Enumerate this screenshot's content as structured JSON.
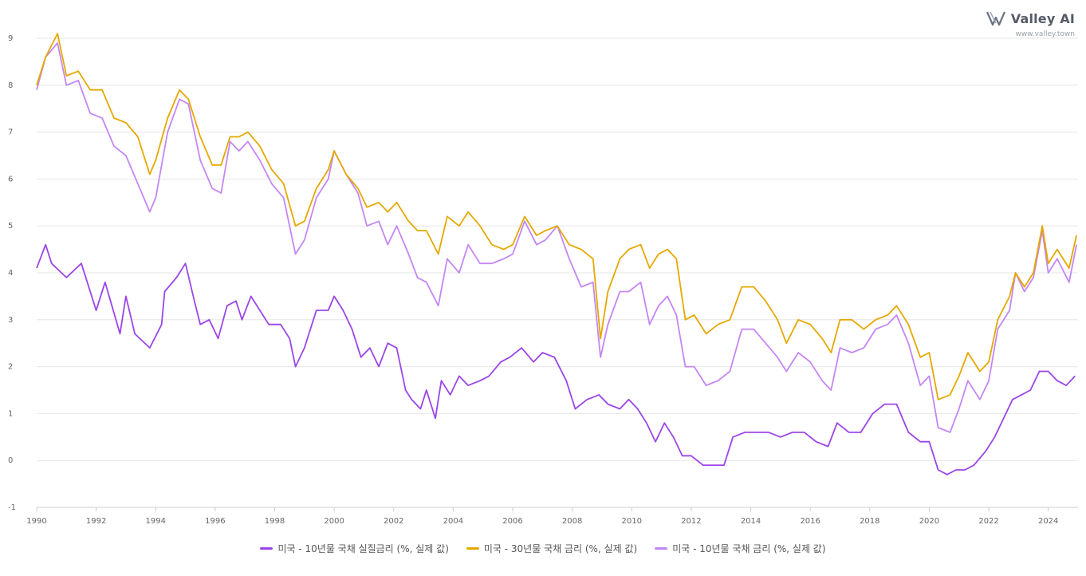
{
  "brand": {
    "name": "Valley AI",
    "url": "www.valley.town"
  },
  "chart_data": {
    "type": "line",
    "title": "",
    "xlabel": "",
    "ylabel": "",
    "xlim": [
      1990,
      2025
    ],
    "ylim": [
      -1,
      9
    ],
    "y_ticks": [
      -1,
      0,
      1,
      2,
      3,
      4,
      5,
      6,
      7,
      8,
      9
    ],
    "x_ticks": [
      1990,
      1992,
      1994,
      1996,
      1998,
      2000,
      2002,
      2004,
      2006,
      2008,
      2010,
      2012,
      2014,
      2016,
      2018,
      2020,
      2022,
      2024
    ],
    "grid": "horizontal",
    "legend_position": "bottom",
    "series": [
      {
        "name": "미국 - 10년물 국채 실질금리 (%, 실제 값)",
        "color": "#9b45e8",
        "points": [
          [
            1990.0,
            4.1
          ],
          [
            1990.3,
            4.6
          ],
          [
            1990.5,
            4.2
          ],
          [
            1991.0,
            3.9
          ],
          [
            1991.5,
            4.2
          ],
          [
            1992.0,
            3.2
          ],
          [
            1992.3,
            3.8
          ],
          [
            1992.8,
            2.7
          ],
          [
            1993.0,
            3.5
          ],
          [
            1993.3,
            2.7
          ],
          [
            1993.8,
            2.4
          ],
          [
            1994.2,
            2.9
          ],
          [
            1994.3,
            3.6
          ],
          [
            1994.7,
            3.9
          ],
          [
            1995.0,
            4.2
          ],
          [
            1995.3,
            3.4
          ],
          [
            1995.5,
            2.9
          ],
          [
            1995.8,
            3.0
          ],
          [
            1996.1,
            2.6
          ],
          [
            1996.4,
            3.3
          ],
          [
            1996.7,
            3.4
          ],
          [
            1996.9,
            3.0
          ],
          [
            1997.2,
            3.5
          ],
          [
            1997.5,
            3.2
          ],
          [
            1997.8,
            2.9
          ],
          [
            1998.2,
            2.9
          ],
          [
            1998.5,
            2.6
          ],
          [
            1998.7,
            2.0
          ],
          [
            1999.0,
            2.4
          ],
          [
            1999.4,
            3.2
          ],
          [
            1999.8,
            3.2
          ],
          [
            2000.0,
            3.5
          ],
          [
            2000.3,
            3.2
          ],
          [
            2000.6,
            2.8
          ],
          [
            2000.9,
            2.2
          ],
          [
            2001.2,
            2.4
          ],
          [
            2001.5,
            2.0
          ],
          [
            2001.8,
            2.5
          ],
          [
            2002.1,
            2.4
          ],
          [
            2002.4,
            1.5
          ],
          [
            2002.6,
            1.3
          ],
          [
            2002.9,
            1.1
          ],
          [
            2003.1,
            1.5
          ],
          [
            2003.4,
            0.9
          ],
          [
            2003.6,
            1.7
          ],
          [
            2003.9,
            1.4
          ],
          [
            2004.2,
            1.8
          ],
          [
            2004.5,
            1.6
          ],
          [
            2004.9,
            1.7
          ],
          [
            2005.2,
            1.8
          ],
          [
            2005.6,
            2.1
          ],
          [
            2005.9,
            2.2
          ],
          [
            2006.3,
            2.4
          ],
          [
            2006.7,
            2.1
          ],
          [
            2007.0,
            2.3
          ],
          [
            2007.4,
            2.2
          ],
          [
            2007.8,
            1.7
          ],
          [
            2008.1,
            1.1
          ],
          [
            2008.5,
            1.3
          ],
          [
            2008.9,
            1.4
          ],
          [
            2009.2,
            1.2
          ],
          [
            2009.6,
            1.1
          ],
          [
            2009.9,
            1.3
          ],
          [
            2010.2,
            1.1
          ],
          [
            2010.5,
            0.8
          ],
          [
            2010.8,
            0.4
          ],
          [
            2011.1,
            0.8
          ],
          [
            2011.4,
            0.5
          ],
          [
            2011.7,
            0.1
          ],
          [
            2012.0,
            0.1
          ],
          [
            2012.4,
            -0.1
          ],
          [
            2012.7,
            -0.1
          ],
          [
            2013.1,
            -0.1
          ],
          [
            2013.4,
            0.5
          ],
          [
            2013.8,
            0.6
          ],
          [
            2014.2,
            0.6
          ],
          [
            2014.6,
            0.6
          ],
          [
            2015.0,
            0.5
          ],
          [
            2015.4,
            0.6
          ],
          [
            2015.8,
            0.6
          ],
          [
            2016.2,
            0.4
          ],
          [
            2016.6,
            0.3
          ],
          [
            2016.9,
            0.8
          ],
          [
            2017.3,
            0.6
          ],
          [
            2017.7,
            0.6
          ],
          [
            2018.1,
            1.0
          ],
          [
            2018.5,
            1.2
          ],
          [
            2018.9,
            1.2
          ],
          [
            2019.3,
            0.6
          ],
          [
            2019.7,
            0.4
          ],
          [
            2020.0,
            0.4
          ],
          [
            2020.3,
            -0.2
          ],
          [
            2020.6,
            -0.3
          ],
          [
            2020.9,
            -0.2
          ],
          [
            2021.2,
            -0.2
          ],
          [
            2021.5,
            -0.1
          ],
          [
            2021.9,
            0.2
          ],
          [
            2022.2,
            0.5
          ],
          [
            2022.5,
            0.9
          ],
          [
            2022.8,
            1.3
          ],
          [
            2023.1,
            1.4
          ],
          [
            2023.4,
            1.5
          ],
          [
            2023.7,
            1.9
          ],
          [
            2024.0,
            1.9
          ],
          [
            2024.3,
            1.7
          ],
          [
            2024.6,
            1.6
          ],
          [
            2024.9,
            1.8
          ]
        ]
      },
      {
        "name": "미국 - 30년물 국채 금리 (%, 실제 값)",
        "color": "#e5a800",
        "points": [
          [
            1990.0,
            8.0
          ],
          [
            1990.3,
            8.6
          ],
          [
            1990.7,
            9.1
          ],
          [
            1991.0,
            8.2
          ],
          [
            1991.4,
            8.3
          ],
          [
            1991.8,
            7.9
          ],
          [
            1992.2,
            7.9
          ],
          [
            1992.6,
            7.3
          ],
          [
            1993.0,
            7.2
          ],
          [
            1993.4,
            6.9
          ],
          [
            1993.8,
            6.1
          ],
          [
            1994.0,
            6.4
          ],
          [
            1994.4,
            7.3
          ],
          [
            1994.8,
            7.9
          ],
          [
            1995.1,
            7.7
          ],
          [
            1995.5,
            6.9
          ],
          [
            1995.9,
            6.3
          ],
          [
            1996.2,
            6.3
          ],
          [
            1996.5,
            6.9
          ],
          [
            1996.8,
            6.9
          ],
          [
            1997.1,
            7.0
          ],
          [
            1997.5,
            6.7
          ],
          [
            1997.9,
            6.2
          ],
          [
            1998.3,
            5.9
          ],
          [
            1998.7,
            5.0
          ],
          [
            1999.0,
            5.1
          ],
          [
            1999.4,
            5.8
          ],
          [
            1999.8,
            6.2
          ],
          [
            2000.0,
            6.6
          ],
          [
            2000.4,
            6.1
          ],
          [
            2000.8,
            5.8
          ],
          [
            2001.1,
            5.4
          ],
          [
            2001.5,
            5.5
          ],
          [
            2001.8,
            5.3
          ],
          [
            2002.1,
            5.5
          ],
          [
            2002.5,
            5.1
          ],
          [
            2002.8,
            4.9
          ],
          [
            2003.1,
            4.9
          ],
          [
            2003.5,
            4.4
          ],
          [
            2003.8,
            5.2
          ],
          [
            2004.2,
            5.0
          ],
          [
            2004.5,
            5.3
          ],
          [
            2004.9,
            5.0
          ],
          [
            2005.3,
            4.6
          ],
          [
            2005.7,
            4.5
          ],
          [
            2006.0,
            4.6
          ],
          [
            2006.4,
            5.2
          ],
          [
            2006.8,
            4.8
          ],
          [
            2007.1,
            4.9
          ],
          [
            2007.5,
            5.0
          ],
          [
            2007.9,
            4.6
          ],
          [
            2008.3,
            4.5
          ],
          [
            2008.7,
            4.3
          ],
          [
            2008.95,
            2.6
          ],
          [
            2009.2,
            3.6
          ],
          [
            2009.6,
            4.3
          ],
          [
            2009.9,
            4.5
          ],
          [
            2010.3,
            4.6
          ],
          [
            2010.6,
            4.1
          ],
          [
            2010.9,
            4.4
          ],
          [
            2011.2,
            4.5
          ],
          [
            2011.5,
            4.3
          ],
          [
            2011.8,
            3.0
          ],
          [
            2012.1,
            3.1
          ],
          [
            2012.5,
            2.7
          ],
          [
            2012.9,
            2.9
          ],
          [
            2013.3,
            3.0
          ],
          [
            2013.7,
            3.7
          ],
          [
            2014.1,
            3.7
          ],
          [
            2014.5,
            3.4
          ],
          [
            2014.9,
            3.0
          ],
          [
            2015.2,
            2.5
          ],
          [
            2015.6,
            3.0
          ],
          [
            2016.0,
            2.9
          ],
          [
            2016.4,
            2.6
          ],
          [
            2016.7,
            2.3
          ],
          [
            2017.0,
            3.0
          ],
          [
            2017.4,
            3.0
          ],
          [
            2017.8,
            2.8
          ],
          [
            2018.2,
            3.0
          ],
          [
            2018.6,
            3.1
          ],
          [
            2018.9,
            3.3
          ],
          [
            2019.3,
            2.9
          ],
          [
            2019.7,
            2.2
          ],
          [
            2020.0,
            2.3
          ],
          [
            2020.3,
            1.3
          ],
          [
            2020.7,
            1.4
          ],
          [
            2021.0,
            1.8
          ],
          [
            2021.3,
            2.3
          ],
          [
            2021.7,
            1.9
          ],
          [
            2022.0,
            2.1
          ],
          [
            2022.3,
            3.0
          ],
          [
            2022.7,
            3.5
          ],
          [
            2022.9,
            4.0
          ],
          [
            2023.2,
            3.7
          ],
          [
            2023.5,
            4.0
          ],
          [
            2023.8,
            5.0
          ],
          [
            2024.0,
            4.2
          ],
          [
            2024.3,
            4.5
          ],
          [
            2024.7,
            4.1
          ],
          [
            2024.95,
            4.8
          ]
        ]
      },
      {
        "name": "미국 - 10년물 국채 금리 (%, 실제 값)",
        "color": "#c586f5",
        "points": [
          [
            1990.0,
            7.9
          ],
          [
            1990.3,
            8.6
          ],
          [
            1990.7,
            8.9
          ],
          [
            1991.0,
            8.0
          ],
          [
            1991.4,
            8.1
          ],
          [
            1991.8,
            7.4
          ],
          [
            1992.2,
            7.3
          ],
          [
            1992.6,
            6.7
          ],
          [
            1993.0,
            6.5
          ],
          [
            1993.4,
            5.9
          ],
          [
            1993.8,
            5.3
          ],
          [
            1994.0,
            5.6
          ],
          [
            1994.4,
            7.0
          ],
          [
            1994.8,
            7.7
          ],
          [
            1995.1,
            7.6
          ],
          [
            1995.5,
            6.4
          ],
          [
            1995.9,
            5.8
          ],
          [
            1996.2,
            5.7
          ],
          [
            1996.5,
            6.8
          ],
          [
            1996.8,
            6.6
          ],
          [
            1997.1,
            6.8
          ],
          [
            1997.5,
            6.4
          ],
          [
            1997.9,
            5.9
          ],
          [
            1998.3,
            5.6
          ],
          [
            1998.7,
            4.4
          ],
          [
            1999.0,
            4.7
          ],
          [
            1999.4,
            5.6
          ],
          [
            1999.8,
            6.0
          ],
          [
            2000.0,
            6.6
          ],
          [
            2000.4,
            6.1
          ],
          [
            2000.8,
            5.7
          ],
          [
            2001.1,
            5.0
          ],
          [
            2001.5,
            5.1
          ],
          [
            2001.8,
            4.6
          ],
          [
            2002.1,
            5.0
          ],
          [
            2002.5,
            4.4
          ],
          [
            2002.8,
            3.9
          ],
          [
            2003.1,
            3.8
          ],
          [
            2003.5,
            3.3
          ],
          [
            2003.8,
            4.3
          ],
          [
            2004.2,
            4.0
          ],
          [
            2004.5,
            4.6
          ],
          [
            2004.9,
            4.2
          ],
          [
            2005.3,
            4.2
          ],
          [
            2005.7,
            4.3
          ],
          [
            2006.0,
            4.4
          ],
          [
            2006.4,
            5.1
          ],
          [
            2006.8,
            4.6
          ],
          [
            2007.1,
            4.7
          ],
          [
            2007.5,
            5.0
          ],
          [
            2007.9,
            4.3
          ],
          [
            2008.3,
            3.7
          ],
          [
            2008.7,
            3.8
          ],
          [
            2008.95,
            2.2
          ],
          [
            2009.2,
            2.9
          ],
          [
            2009.6,
            3.6
          ],
          [
            2009.9,
            3.6
          ],
          [
            2010.3,
            3.8
          ],
          [
            2010.6,
            2.9
          ],
          [
            2010.9,
            3.3
          ],
          [
            2011.2,
            3.5
          ],
          [
            2011.5,
            3.1
          ],
          [
            2011.8,
            2.0
          ],
          [
            2012.1,
            2.0
          ],
          [
            2012.5,
            1.6
          ],
          [
            2012.9,
            1.7
          ],
          [
            2013.3,
            1.9
          ],
          [
            2013.7,
            2.8
          ],
          [
            2014.1,
            2.8
          ],
          [
            2014.5,
            2.5
          ],
          [
            2014.9,
            2.2
          ],
          [
            2015.2,
            1.9
          ],
          [
            2015.6,
            2.3
          ],
          [
            2016.0,
            2.1
          ],
          [
            2016.4,
            1.7
          ],
          [
            2016.7,
            1.5
          ],
          [
            2017.0,
            2.4
          ],
          [
            2017.4,
            2.3
          ],
          [
            2017.8,
            2.4
          ],
          [
            2018.2,
            2.8
          ],
          [
            2018.6,
            2.9
          ],
          [
            2018.9,
            3.1
          ],
          [
            2019.3,
            2.5
          ],
          [
            2019.7,
            1.6
          ],
          [
            2020.0,
            1.8
          ],
          [
            2020.3,
            0.7
          ],
          [
            2020.7,
            0.6
          ],
          [
            2021.0,
            1.1
          ],
          [
            2021.3,
            1.7
          ],
          [
            2021.7,
            1.3
          ],
          [
            2022.0,
            1.7
          ],
          [
            2022.3,
            2.8
          ],
          [
            2022.7,
            3.2
          ],
          [
            2022.9,
            4.0
          ],
          [
            2023.2,
            3.6
          ],
          [
            2023.5,
            3.9
          ],
          [
            2023.8,
            4.9
          ],
          [
            2024.0,
            4.0
          ],
          [
            2024.3,
            4.3
          ],
          [
            2024.7,
            3.8
          ],
          [
            2024.95,
            4.6
          ]
        ]
      }
    ]
  }
}
